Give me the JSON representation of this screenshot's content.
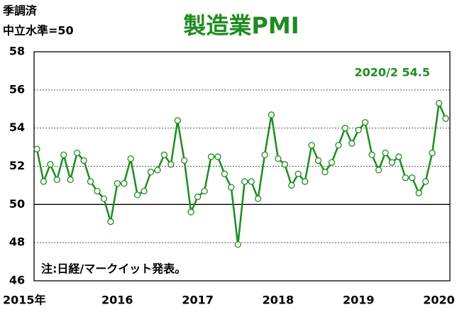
{
  "chart_data": {
    "type": "line",
    "title": "製造業PMI",
    "notes": [
      "季調済",
      "中立水準=50"
    ],
    "annotation": "2020/2  54.5",
    "source": "注:日経/マークイット発表。",
    "categories": [
      "2015年",
      null,
      null,
      null,
      null,
      null,
      null,
      null,
      null,
      null,
      null,
      null,
      "2016",
      null,
      null,
      null,
      null,
      null,
      null,
      null,
      null,
      null,
      null,
      null,
      "2017",
      null,
      null,
      null,
      null,
      null,
      null,
      null,
      null,
      null,
      null,
      null,
      "2018",
      null,
      null,
      null,
      null,
      null,
      null,
      null,
      null,
      null,
      null,
      null,
      "2019",
      null,
      null,
      null,
      null,
      null,
      null,
      null,
      null,
      null,
      null,
      null,
      "2020",
      null
    ],
    "values": [
      52.9,
      51.2,
      52.1,
      51.3,
      52.6,
      51.3,
      52.7,
      52.3,
      51.2,
      50.7,
      50.3,
      49.1,
      51.1,
      51.1,
      52.4,
      50.5,
      50.7,
      51.7,
      51.8,
      52.6,
      52.1,
      54.4,
      52.3,
      49.6,
      50.4,
      50.7,
      52.5,
      52.5,
      51.6,
      50.9,
      47.9,
      51.2,
      51.2,
      50.3,
      52.6,
      54.7,
      52.4,
      52.1,
      51.0,
      51.6,
      51.2,
      53.1,
      52.3,
      51.7,
      52.2,
      53.1,
      54.0,
      53.2,
      53.9,
      54.3,
      52.6,
      51.8,
      52.7,
      52.2,
      52.5,
      51.4,
      51.4,
      50.6,
      51.2,
      52.7,
      55.3,
      54.5
    ],
    "color": "#1e8c1e",
    "ylim": [
      46,
      58
    ],
    "yticks": [
      46,
      48,
      50,
      52,
      54,
      56,
      58
    ],
    "reference_line": 50,
    "grid": true
  }
}
